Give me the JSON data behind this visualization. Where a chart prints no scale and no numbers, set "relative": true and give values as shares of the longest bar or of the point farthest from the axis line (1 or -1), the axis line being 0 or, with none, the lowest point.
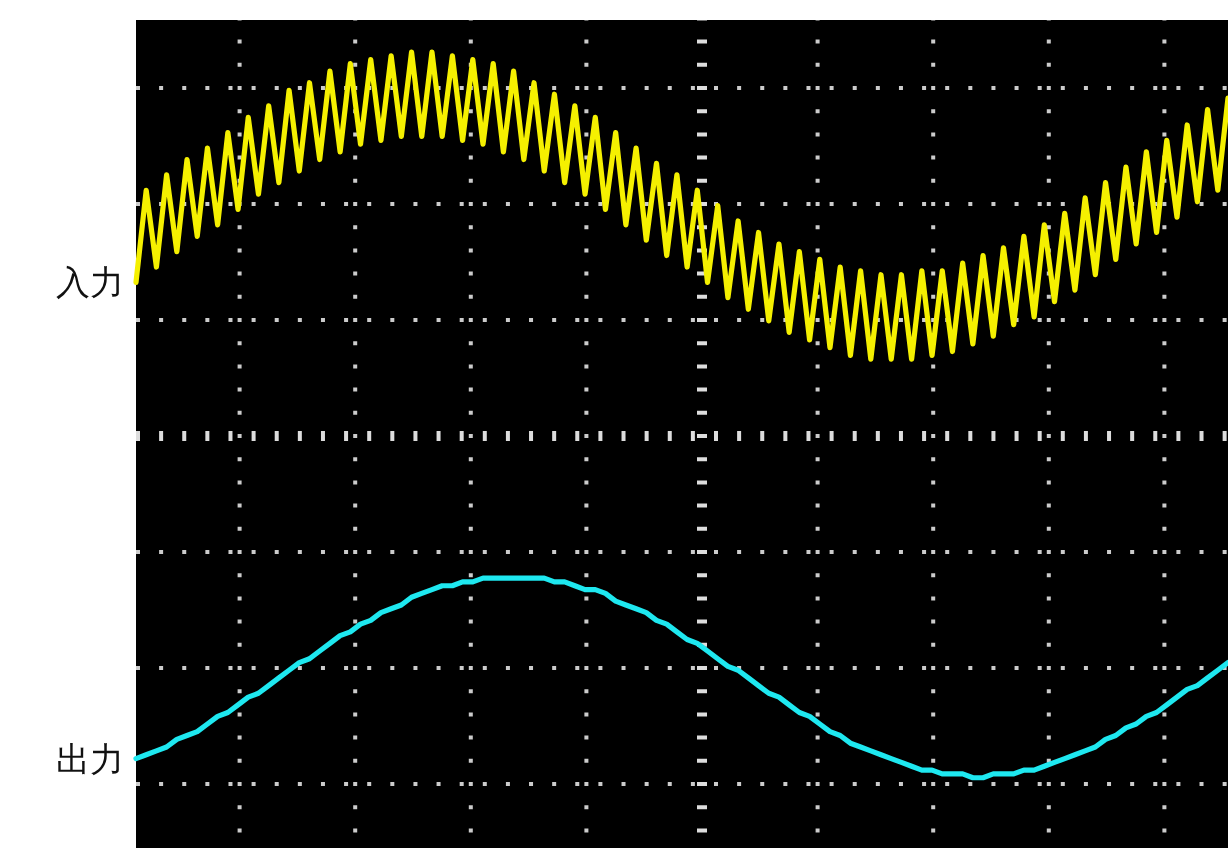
{
  "chart_data": {
    "type": "line",
    "relative": true,
    "grid": true,
    "ref_lines": [
      {
        "axis": "y",
        "value": 0,
        "color": "#dddddd",
        "line_style": "dotted"
      }
    ],
    "categories": [
      null,
      null,
      null,
      null,
      null,
      null,
      null,
      null,
      null,
      null,
      null,
      null,
      null,
      null,
      null,
      null,
      null,
      null,
      null,
      null,
      null,
      null,
      null,
      null,
      null,
      null,
      null,
      null,
      null,
      null,
      null,
      null,
      null,
      null,
      null,
      null,
      null,
      null,
      null,
      null,
      null,
      null,
      null,
      null,
      null,
      null,
      null,
      null,
      null,
      null,
      null,
      null,
      null,
      null,
      null,
      null,
      null,
      null,
      null,
      null,
      null,
      null,
      null,
      null,
      null,
      null,
      null,
      null,
      null,
      null,
      null,
      null,
      null,
      null,
      null,
      null,
      null,
      null,
      null,
      null,
      null,
      null,
      null,
      null,
      null,
      null,
      null,
      null,
      null,
      null,
      null,
      null,
      null,
      null,
      null,
      null,
      null,
      null,
      null,
      null,
      null,
      null,
      null,
      null,
      null,
      null,
      null,
      null
    ],
    "series": [
      {
        "name": "入力",
        "color": "#f5f000",
        "values": [
          0.4,
          0.64,
          0.44,
          0.68,
          0.48,
          0.72,
          0.52,
          0.75,
          0.55,
          0.79,
          0.59,
          0.83,
          0.63,
          0.86,
          0.66,
          0.9,
          0.69,
          0.92,
          0.72,
          0.95,
          0.74,
          0.97,
          0.76,
          0.98,
          0.77,
          0.99,
          0.78,
          1.0,
          0.78,
          1.0,
          0.78,
          0.99,
          0.77,
          0.98,
          0.76,
          0.97,
          0.74,
          0.95,
          0.72,
          0.92,
          0.69,
          0.89,
          0.66,
          0.86,
          0.63,
          0.83,
          0.59,
          0.79,
          0.55,
          0.75,
          0.51,
          0.71,
          0.47,
          0.68,
          0.44,
          0.64,
          0.4,
          0.6,
          0.36,
          0.56,
          0.33,
          0.53,
          0.3,
          0.5,
          0.27,
          0.48,
          0.25,
          0.46,
          0.23,
          0.44,
          0.21,
          0.43,
          0.2,
          0.42,
          0.2,
          0.42,
          0.2,
          0.43,
          0.21,
          0.43,
          0.22,
          0.45,
          0.24,
          0.47,
          0.26,
          0.49,
          0.29,
          0.52,
          0.31,
          0.55,
          0.35,
          0.58,
          0.38,
          0.62,
          0.42,
          0.66,
          0.46,
          0.7,
          0.5,
          0.74,
          0.53,
          0.77,
          0.57,
          0.81,
          0.61,
          0.85,
          0.64,
          0.88
        ]
      },
      {
        "name": "出力",
        "color": "#1ee8f0",
        "values": [
          -0.84,
          -0.83,
          -0.82,
          -0.81,
          -0.79,
          -0.78,
          -0.77,
          -0.75,
          -0.73,
          -0.72,
          -0.7,
          -0.68,
          -0.67,
          -0.65,
          -0.63,
          -0.61,
          -0.59,
          -0.58,
          -0.56,
          -0.54,
          -0.52,
          -0.51,
          -0.49,
          -0.48,
          -0.46,
          -0.45,
          -0.44,
          -0.42,
          -0.41,
          -0.4,
          -0.39,
          -0.39,
          -0.38,
          -0.38,
          -0.37,
          -0.37,
          -0.37,
          -0.37,
          -0.37,
          -0.37,
          -0.37,
          -0.38,
          -0.38,
          -0.39,
          -0.4,
          -0.4,
          -0.41,
          -0.43,
          -0.44,
          -0.45,
          -0.46,
          -0.48,
          -0.49,
          -0.51,
          -0.53,
          -0.54,
          -0.56,
          -0.58,
          -0.6,
          -0.61,
          -0.63,
          -0.65,
          -0.67,
          -0.68,
          -0.7,
          -0.72,
          -0.73,
          -0.75,
          -0.77,
          -0.78,
          -0.8,
          -0.81,
          -0.82,
          -0.83,
          -0.84,
          -0.85,
          -0.86,
          -0.87,
          -0.87,
          -0.88,
          -0.88,
          -0.88,
          -0.89,
          -0.89,
          -0.88,
          -0.88,
          -0.88,
          -0.87,
          -0.87,
          -0.86,
          -0.85,
          -0.84,
          -0.83,
          -0.82,
          -0.81,
          -0.79,
          -0.78,
          -0.76,
          -0.75,
          -0.73,
          -0.72,
          -0.7,
          -0.68,
          -0.66,
          -0.65,
          -0.63,
          -0.61,
          -0.59
        ]
      }
    ]
  }
}
